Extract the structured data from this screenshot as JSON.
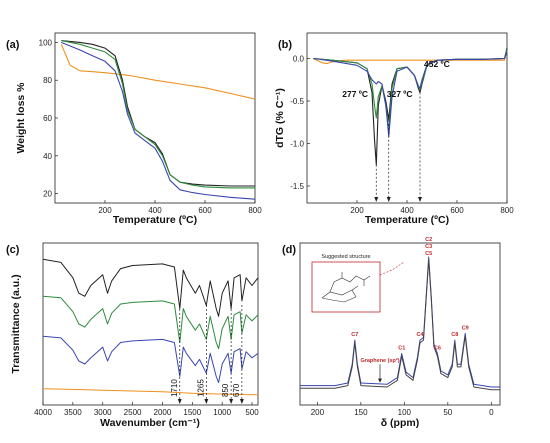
{
  "chart_data": [
    {
      "panel": "(a)",
      "type": "line",
      "xlabel": "Temperature (ºC)",
      "ylabel": "Weight loss %",
      "xlim": [
        0,
        800
      ],
      "ylim": [
        15,
        105
      ],
      "xticks": [
        "200",
        "400",
        "600",
        "800"
      ],
      "yticks": [
        "20",
        "40",
        "60",
        "80",
        "100"
      ],
      "grid": false,
      "series": [
        {
          "color": "#f0901e",
          "x": [
            25,
            60,
            100,
            150,
            200,
            300,
            400,
            500,
            600,
            700,
            800
          ],
          "y": [
            99,
            88,
            85,
            84.5,
            84,
            82.5,
            80,
            78,
            76,
            73,
            70
          ]
        },
        {
          "color": "#222222",
          "x": [
            25,
            100,
            150,
            200,
            240,
            270,
            290,
            320,
            360,
            400,
            430,
            460,
            500,
            550,
            600,
            700,
            800
          ],
          "y": [
            101,
            100,
            99,
            97,
            93,
            80,
            66,
            54,
            50,
            47,
            41,
            30,
            26,
            25,
            24.5,
            24,
            24
          ]
        },
        {
          "color": "#2e8b3e",
          "x": [
            25,
            100,
            150,
            200,
            240,
            270,
            290,
            320,
            360,
            400,
            430,
            460,
            500,
            550,
            600,
            700,
            800
          ],
          "y": [
            101,
            99,
            97,
            95,
            91,
            78,
            64,
            54,
            50,
            46,
            40,
            30,
            26,
            24.5,
            23.5,
            23,
            23
          ]
        },
        {
          "color": "#3a46b0",
          "x": [
            25,
            100,
            150,
            200,
            240,
            270,
            290,
            320,
            360,
            400,
            430,
            460,
            500,
            550,
            600,
            700,
            800
          ],
          "y": [
            100,
            96,
            93,
            90,
            85,
            74,
            62,
            52,
            48,
            44,
            37,
            27,
            22,
            20.5,
            19.5,
            18,
            17
          ]
        }
      ]
    },
    {
      "panel": "(b)",
      "type": "line",
      "xlabel": "Temperature (ºC)",
      "ylabel": "dTG (% C⁻¹)",
      "xlim": [
        0,
        800
      ],
      "ylim": [
        -1.7,
        0.3
      ],
      "xticks": [
        "200",
        "400",
        "600",
        "800"
      ],
      "yticks": [
        "0.0",
        "-0.5",
        "-1.0",
        "-1.5"
      ],
      "grid": false,
      "annotations": [
        "277 ºC",
        "327 ºC",
        "452 ºC"
      ],
      "annotation_x": [
        277,
        327,
        452
      ],
      "series": [
        {
          "color": "#f0901e",
          "x": [
            25,
            40,
            60,
            80,
            100,
            150,
            200,
            300,
            400,
            500,
            600,
            700,
            790,
            800
          ],
          "y": [
            0,
            -0.02,
            -0.05,
            -0.06,
            -0.04,
            -0.02,
            -0.02,
            -0.02,
            -0.02,
            -0.02,
            -0.02,
            -0.02,
            -0.02,
            0.1
          ]
        },
        {
          "color": "#222222",
          "x": [
            25,
            100,
            200,
            240,
            260,
            270,
            277,
            285,
            300,
            315,
            327,
            340,
            360,
            400,
            430,
            445,
            452,
            460,
            480,
            520,
            600,
            700,
            790,
            800
          ],
          "y": [
            0,
            -0.02,
            -0.05,
            -0.12,
            -0.4,
            -0.95,
            -1.25,
            -0.55,
            -0.32,
            -0.5,
            -0.72,
            -0.3,
            -0.12,
            -0.1,
            -0.2,
            -0.35,
            -0.4,
            -0.3,
            -0.08,
            -0.02,
            -0.01,
            -0.01,
            0,
            0.12
          ]
        },
        {
          "color": "#2e8b3e",
          "x": [
            25,
            100,
            200,
            240,
            260,
            270,
            277,
            285,
            300,
            315,
            327,
            340,
            360,
            400,
            430,
            445,
            452,
            460,
            480,
            520,
            600,
            700,
            790,
            800
          ],
          "y": [
            0,
            -0.02,
            -0.05,
            -0.12,
            -0.3,
            -0.55,
            -0.7,
            -0.45,
            -0.32,
            -0.55,
            -0.85,
            -0.35,
            -0.12,
            -0.1,
            -0.2,
            -0.33,
            -0.37,
            -0.28,
            -0.08,
            -0.02,
            -0.01,
            -0.01,
            0,
            0.1
          ]
        },
        {
          "color": "#3a46b0",
          "x": [
            25,
            100,
            200,
            240,
            260,
            270,
            277,
            285,
            300,
            315,
            327,
            340,
            360,
            400,
            430,
            445,
            452,
            460,
            480,
            520,
            600,
            700,
            790,
            800
          ],
          "y": [
            0,
            -0.03,
            -0.08,
            -0.15,
            -0.25,
            -0.28,
            -0.3,
            -0.27,
            -0.3,
            -0.55,
            -0.92,
            -0.45,
            -0.15,
            -0.1,
            -0.2,
            -0.32,
            -0.35,
            -0.25,
            -0.07,
            -0.02,
            -0.01,
            -0.01,
            0,
            0.08
          ]
        }
      ]
    },
    {
      "panel": "(c)",
      "type": "line",
      "xlabel": "Wavenumber (cm⁻¹)",
      "ylabel": "Transmittance (a.u.)",
      "xlim": [
        4000,
        400
      ],
      "xticks": [
        "4000",
        "3500",
        "3000",
        "2500",
        "2000",
        "1500",
        "1000",
        "500"
      ],
      "grid": false,
      "annotations": [
        "1710",
        "1265",
        "850",
        "670"
      ],
      "annotation_x": [
        1710,
        1265,
        850,
        670
      ],
      "series": [
        {
          "color": "#222222",
          "x": [
            4000,
            3700,
            3500,
            3400,
            3300,
            3200,
            3000,
            2920,
            2850,
            2700,
            2500,
            2000,
            1800,
            1710,
            1650,
            1600,
            1450,
            1380,
            1265,
            1200,
            1100,
            1060,
            1000,
            900,
            850,
            800,
            700,
            670,
            600,
            500,
            400
          ],
          "y": [
            0.92,
            0.9,
            0.8,
            0.7,
            0.68,
            0.75,
            0.82,
            0.7,
            0.78,
            0.86,
            0.88,
            0.89,
            0.87,
            0.6,
            0.85,
            0.8,
            0.7,
            0.75,
            0.62,
            0.78,
            0.6,
            0.55,
            0.7,
            0.78,
            0.6,
            0.8,
            0.82,
            0.65,
            0.8,
            0.75,
            0.8
          ]
        },
        {
          "color": "#2e8b3e",
          "x": [
            4000,
            3700,
            3500,
            3400,
            3300,
            3200,
            3000,
            2920,
            2850,
            2700,
            2500,
            2000,
            1800,
            1710,
            1650,
            1600,
            1450,
            1380,
            1265,
            1200,
            1100,
            1060,
            1000,
            900,
            850,
            800,
            700,
            670,
            600,
            500,
            400
          ],
          "y": [
            0.68,
            0.67,
            0.58,
            0.5,
            0.48,
            0.53,
            0.6,
            0.5,
            0.57,
            0.63,
            0.64,
            0.65,
            0.63,
            0.38,
            0.6,
            0.55,
            0.46,
            0.5,
            0.4,
            0.55,
            0.38,
            0.34,
            0.47,
            0.55,
            0.4,
            0.56,
            0.58,
            0.44,
            0.56,
            0.52,
            0.56
          ]
        },
        {
          "color": "#3a46b0",
          "x": [
            4000,
            3700,
            3500,
            3400,
            3300,
            3200,
            3000,
            2920,
            2850,
            2700,
            2500,
            2000,
            1800,
            1710,
            1650,
            1600,
            1450,
            1380,
            1265,
            1200,
            1100,
            1060,
            1000,
            900,
            850,
            800,
            700,
            670,
            600,
            500,
            400
          ],
          "y": [
            0.42,
            0.41,
            0.33,
            0.26,
            0.24,
            0.28,
            0.35,
            0.26,
            0.32,
            0.38,
            0.39,
            0.4,
            0.38,
            0.16,
            0.35,
            0.31,
            0.23,
            0.27,
            0.18,
            0.31,
            0.16,
            0.12,
            0.24,
            0.31,
            0.18,
            0.32,
            0.34,
            0.21,
            0.32,
            0.28,
            0.31
          ]
        },
        {
          "color": "#f0901e",
          "x": [
            4000,
            3500,
            3000,
            2500,
            2000,
            1500,
            1000,
            500,
            400
          ],
          "y": [
            0.08,
            0.075,
            0.07,
            0.065,
            0.06,
            0.05,
            0.045,
            0.04,
            0.04
          ]
        }
      ]
    },
    {
      "panel": "(d)",
      "type": "line",
      "xlabel": "δ (ppm)",
      "xlim": [
        220,
        -10
      ],
      "xticks": [
        "200",
        "150",
        "100",
        "50",
        "0"
      ],
      "grid": false,
      "inset_title": "Suggested structure",
      "peak_labels": [
        {
          "label": "C7",
          "x": 157
        },
        {
          "label": "C1",
          "x": 103
        },
        {
          "label": "C4",
          "x": 82
        },
        {
          "label": "C2",
          "x": 72
        },
        {
          "label": "C3",
          "x": 72
        },
        {
          "label": "C5",
          "x": 72
        },
        {
          "label": "C6",
          "x": 62
        },
        {
          "label": "C8",
          "x": 42
        },
        {
          "label": "C9",
          "x": 30
        }
      ],
      "arrow_label": "Graphene (sp²)",
      "arrow_x": 128,
      "series": [
        {
          "color": "#3a46b0",
          "x": [
            220,
            180,
            165,
            160,
            157,
            154,
            150,
            120,
            108,
            103,
            98,
            90,
            85,
            82,
            78,
            75,
            72,
            69,
            66,
            62,
            58,
            50,
            45,
            42,
            39,
            35,
            30,
            26,
            20,
            0,
            -10
          ],
          "y": [
            0.04,
            0.04,
            0.06,
            0.2,
            0.38,
            0.2,
            0.06,
            0.05,
            0.1,
            0.28,
            0.14,
            0.1,
            0.25,
            0.38,
            0.4,
            0.7,
            1.0,
            0.7,
            0.35,
            0.28,
            0.15,
            0.12,
            0.2,
            0.38,
            0.2,
            0.2,
            0.43,
            0.2,
            0.05,
            0.03,
            0.03
          ]
        },
        {
          "color": "#444444",
          "x": [
            220,
            180,
            165,
            160,
            157,
            154,
            150,
            120,
            108,
            103,
            98,
            90,
            85,
            82,
            78,
            75,
            72,
            69,
            66,
            62,
            58,
            50,
            45,
            42,
            39,
            35,
            30,
            26,
            20,
            0,
            -10
          ],
          "y": [
            0.02,
            0.02,
            0.04,
            0.18,
            0.36,
            0.18,
            0.04,
            0.03,
            0.08,
            0.26,
            0.12,
            0.08,
            0.23,
            0.36,
            0.38,
            0.68,
            0.98,
            0.68,
            0.33,
            0.26,
            0.13,
            0.1,
            0.18,
            0.36,
            0.18,
            0.18,
            0.41,
            0.18,
            0.03,
            0.01,
            0.01
          ]
        }
      ]
    }
  ]
}
